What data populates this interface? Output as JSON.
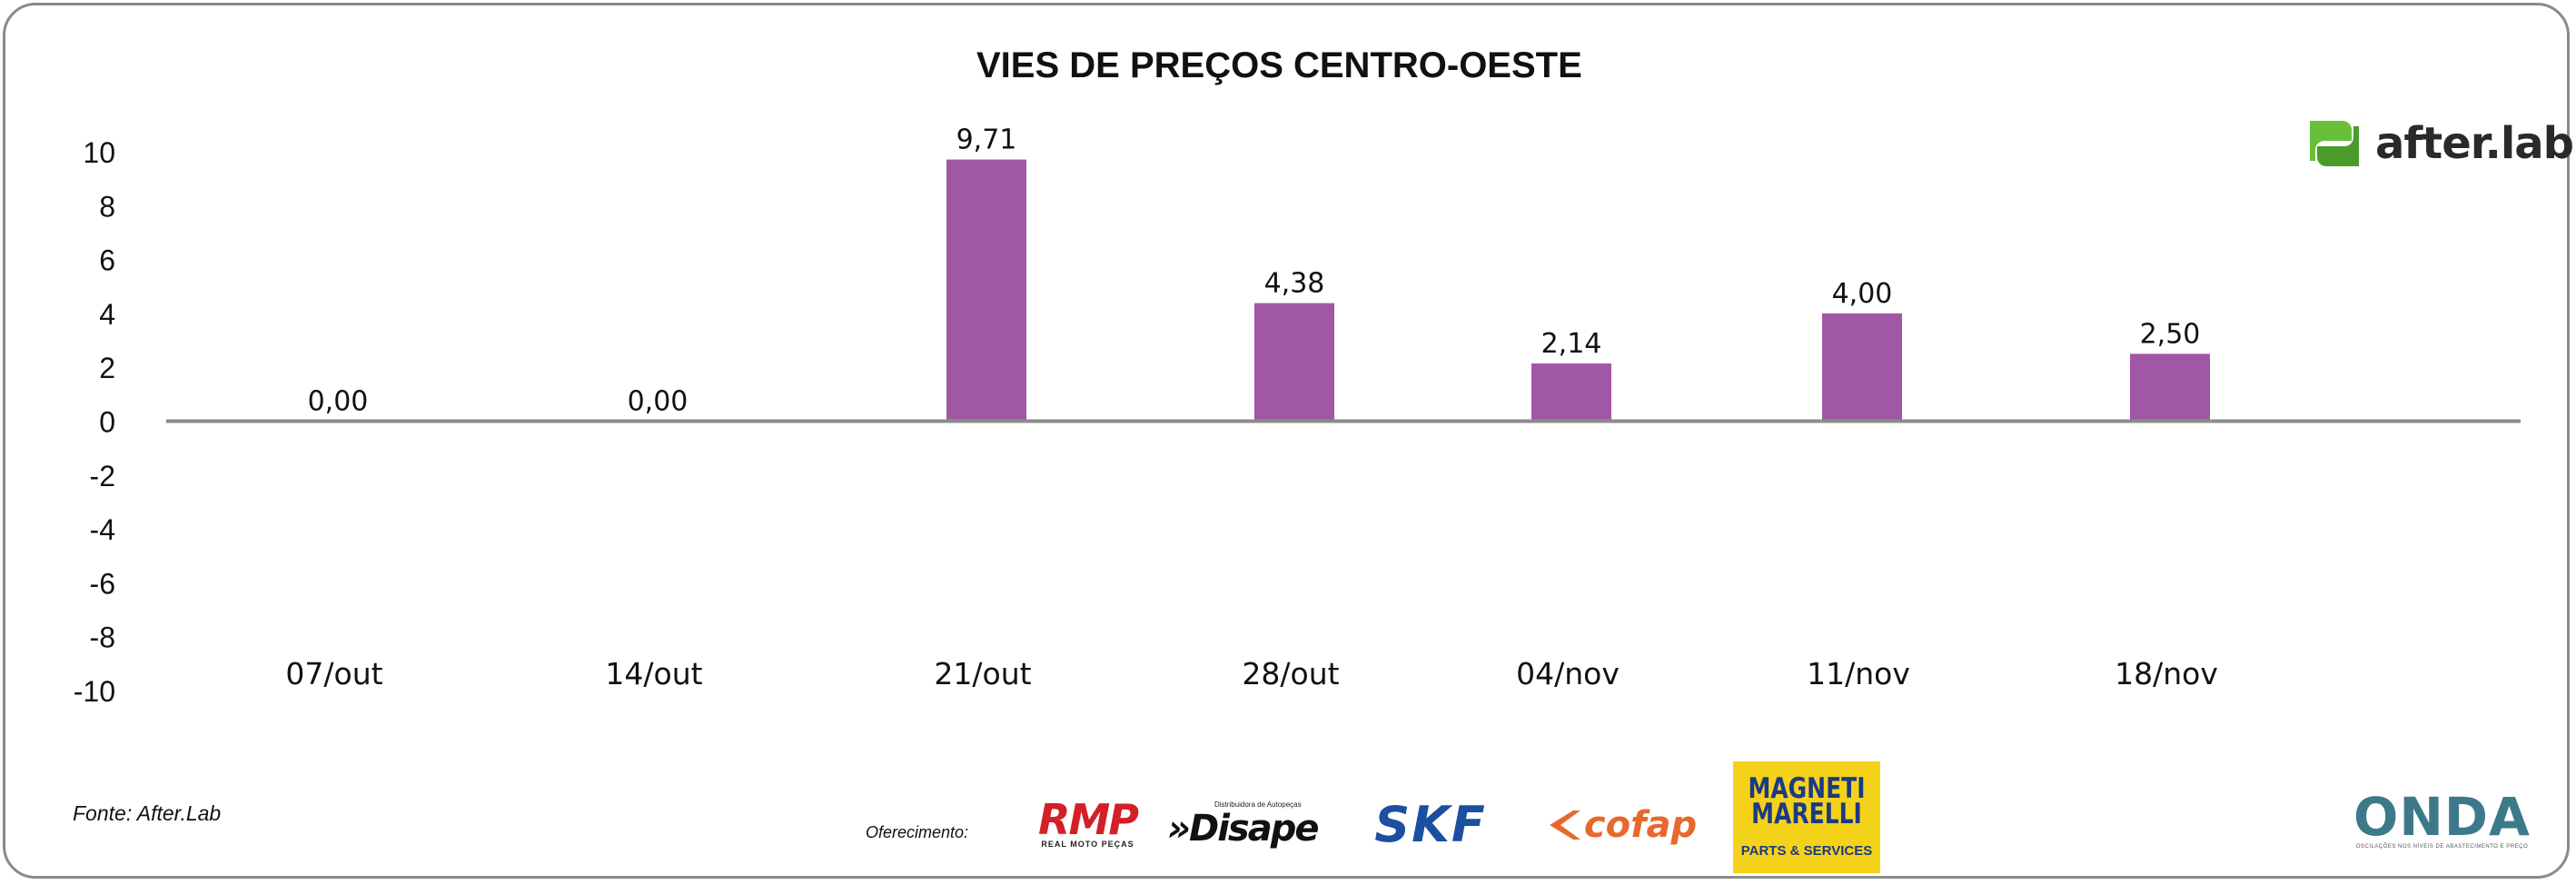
{
  "title": "VIES DE PREÇOS CENTRO-OESTE",
  "brand": {
    "name": "after.lab",
    "colors": {
      "green": "#6abf3a",
      "dark": "#2a2a2a"
    }
  },
  "footer": {
    "source": "Fonte: After.Lab",
    "offer_label": "Oferecimento:",
    "sponsors": {
      "rmp": {
        "name": "RMP",
        "tagline": "REAL MOTO PEÇAS"
      },
      "disape": {
        "name": "»Disape",
        "tagline": "Distribuidora de Autopeças"
      },
      "skf": {
        "name": "SKF"
      },
      "cofap": {
        "name": "cofap"
      },
      "magneti": {
        "name_line1": "MAGNETI",
        "name_line2": "MARELLI",
        "tagline": "PARTS & SERVICES"
      },
      "onda": {
        "name": "ONDA",
        "tagline": "OSCILAÇÕES NOS NÍVEIS DE ABASTECIMENTO E PREÇO"
      }
    }
  },
  "chart_data": {
    "type": "bar",
    "title": "VIES DE PREÇOS CENTRO-OESTE",
    "categories": [
      "07/out",
      "14/out",
      "21/out",
      "28/out",
      "04/nov",
      "11/nov",
      "18/nov"
    ],
    "values": [
      0,
      0,
      9.71,
      4.38,
      2.14,
      4.0,
      2.5
    ],
    "value_labels": [
      "0,00",
      "0,00",
      "9,71",
      "4,38",
      "2,14",
      "4,00",
      "2,50"
    ],
    "ylim": [
      -10,
      10
    ],
    "yticks": [
      10,
      8,
      6,
      4,
      2,
      0,
      -2,
      -4,
      -6,
      -8,
      -10
    ],
    "bar_color": "#a057a6",
    "grid": false,
    "legend": "none"
  }
}
